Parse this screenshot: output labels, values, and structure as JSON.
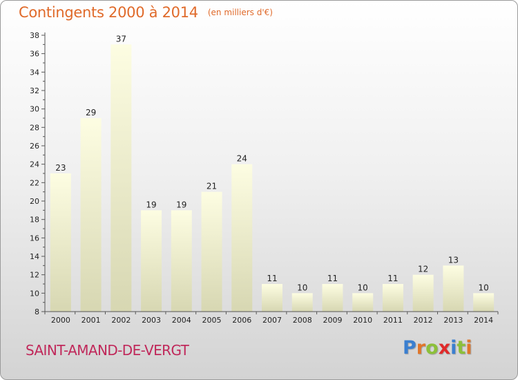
{
  "header": {
    "title": "Contingents 2000 à 2014",
    "subtitle": "(en milliers d'€)"
  },
  "footer": {
    "commune": "SAINT-AMAND-DE-VERGT",
    "logo_letters": [
      {
        "ch": "P",
        "color": "#3a7fd0"
      },
      {
        "ch": "r",
        "color": "#e0762a"
      },
      {
        "ch": "o",
        "color": "#8cc03a"
      },
      {
        "ch": "x",
        "color": "#e02a2a"
      },
      {
        "ch": "i",
        "color": "#3a7fd0"
      },
      {
        "ch": "t",
        "color": "#8cc03a"
      },
      {
        "ch": "i",
        "color": "#e0762a"
      }
    ]
  },
  "chart_data": {
    "type": "bar",
    "title": "Contingents 2000 à 2014",
    "subtitle": "(en milliers d'€)",
    "categories": [
      "2000",
      "2001",
      "2002",
      "2003",
      "2004",
      "2005",
      "2006",
      "2007",
      "2008",
      "2009",
      "2010",
      "2011",
      "2012",
      "2013",
      "2014"
    ],
    "values": [
      23,
      29,
      37,
      19,
      19,
      21,
      24,
      11,
      10,
      11,
      10,
      11,
      12,
      13,
      10
    ],
    "ylim": [
      8,
      38
    ],
    "yticks": [
      8,
      10,
      12,
      14,
      16,
      18,
      20,
      22,
      24,
      26,
      28,
      30,
      32,
      34,
      36,
      38
    ],
    "grid": false,
    "bar_color_top": "#fdfde2",
    "bar_color_bottom": "#d7d7b2"
  }
}
